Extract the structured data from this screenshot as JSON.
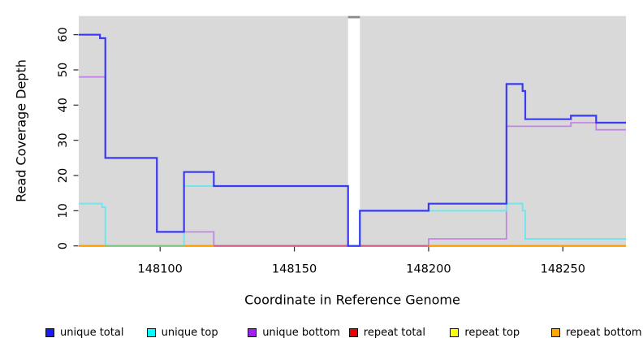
{
  "chart_data": {
    "type": "line",
    "subtype": "step-coverage-plot",
    "xlabel": "Coordinate in Reference Genome",
    "ylabel": "Read Coverage Depth",
    "plot_bg": "#d9d9d9",
    "grid": false,
    "xlim": [
      148069.7,
      148273.5
    ],
    "ylim": [
      0,
      65.3
    ],
    "x_ticks": [
      {
        "pos": 148100,
        "label": "148100"
      },
      {
        "pos": 148150,
        "label": "148150"
      },
      {
        "pos": 148200,
        "label": "148200"
      },
      {
        "pos": 148250,
        "label": "148250"
      }
    ],
    "y_ticks": [
      {
        "pos": 0,
        "label": "0"
      },
      {
        "pos": 10,
        "label": "10"
      },
      {
        "pos": 20,
        "label": "20"
      },
      {
        "pos": 30,
        "label": "30"
      },
      {
        "pos": 40,
        "label": "40"
      },
      {
        "pos": 50,
        "label": "50"
      },
      {
        "pos": 60,
        "label": "60"
      }
    ],
    "gap_region": {
      "x0": 148170,
      "x1": 148174.4,
      "fill": "#ffffff",
      "top_bar_color": "#8a8a8a"
    },
    "series": [
      {
        "name": "repeat total",
        "line_color": "#e01010",
        "width": 2,
        "points": [
          [
            148069.7,
            0
          ]
        ],
        "xend": 148273.5
      },
      {
        "name": "repeat top",
        "line_color": "#f5f500",
        "width": 2,
        "points": [
          [
            148069.7,
            0
          ]
        ],
        "xend": 148273.5
      },
      {
        "name": "repeat bottom",
        "line_color": "#ff9d00",
        "width": 2,
        "points": [
          [
            148069.7,
            0
          ]
        ],
        "xend": 148273.5
      },
      {
        "name": "unique bottom",
        "line_color": "#c583ea",
        "width": 1.8,
        "points": [
          [
            148069.7,
            48
          ],
          [
            148079.6,
            25
          ],
          [
            148098.8,
            4
          ],
          [
            148120,
            0
          ],
          [
            148200,
            2
          ],
          [
            148229,
            34
          ],
          [
            148253,
            35
          ],
          [
            148262.4,
            33
          ]
        ],
        "xend": 148273.5
      },
      {
        "name": "unique top",
        "line_color": "#72e6ec",
        "width": 2,
        "points": [
          [
            148069.7,
            12
          ],
          [
            148078.4,
            11
          ],
          [
            148079.6,
            0
          ],
          [
            148108.9,
            17
          ],
          [
            148170,
            0
          ],
          [
            148174.4,
            10
          ],
          [
            148229,
            12
          ],
          [
            148235,
            10
          ],
          [
            148236,
            2
          ]
        ],
        "xend": 148273.5
      },
      {
        "name": "unique total",
        "line_color": "#3a3af2",
        "width": 2.2,
        "points": [
          [
            148069.7,
            60
          ],
          [
            148077.6,
            59
          ],
          [
            148079.6,
            25
          ],
          [
            148098.8,
            4
          ],
          [
            148108.9,
            21
          ],
          [
            148120,
            17
          ],
          [
            148170,
            0
          ],
          [
            148174.4,
            10
          ],
          [
            148200,
            12
          ],
          [
            148229,
            46
          ],
          [
            148235,
            44
          ],
          [
            148236,
            36
          ],
          [
            148253,
            37
          ],
          [
            148262.4,
            35
          ]
        ],
        "xend": 148273.5
      }
    ],
    "baseline_segments": [
      {
        "x0": 148069.7,
        "x1": 148079.6,
        "color": "#ff9d00"
      },
      {
        "x0": 148079.6,
        "x1": 148108.9,
        "color": "#7cc67f"
      },
      {
        "x0": 148108.9,
        "x1": 148120.0,
        "color": "#ff9d00"
      },
      {
        "x0": 148120.0,
        "x1": 148200.0,
        "color": "#d05c88"
      },
      {
        "x0": 148200.0,
        "x1": 148273.5,
        "color": "#ff9d00"
      }
    ],
    "legend": [
      {
        "label": "unique total",
        "color": "#1a1aff"
      },
      {
        "label": "unique top",
        "color": "#00ffff"
      },
      {
        "label": "unique bottom",
        "color": "#a020f0"
      },
      {
        "label": "repeat total",
        "color": "#ee0000"
      },
      {
        "label": "repeat top",
        "color": "#ffff00"
      },
      {
        "label": "repeat bottom",
        "color": "#ffa500"
      }
    ],
    "legend_position": "bottom"
  }
}
